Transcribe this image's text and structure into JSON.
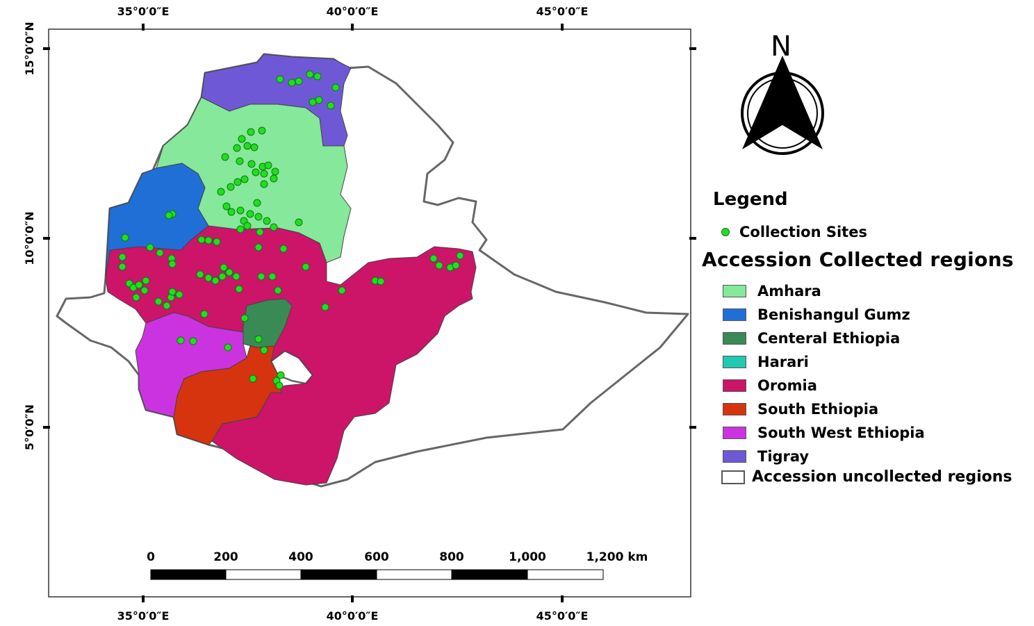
{
  "map": {
    "top_lon_labels": [
      "35°0′0″E",
      "40°0′0″E",
      "45°0′0″E"
    ],
    "bottom_lon_labels": [
      "35°0′0″E",
      "40°0′0″E",
      "45°0′0″E"
    ],
    "lat_labels": [
      "15°0′0″N",
      "10°0′0″N",
      "5°0′0″N"
    ],
    "north_arrow_label": "N",
    "scale_bar": {
      "labels": [
        "0",
        "200",
        "400",
        "600",
        "800",
        "1,000",
        "1,200 km"
      ]
    }
  },
  "legend": {
    "title": "Legend",
    "sites_label": "Collection Sites",
    "subtitle": "Accession Collected regions",
    "regions": [
      {
        "name": "Amhara",
        "color": "#86e89a"
      },
      {
        "name": "Benishangul Gumz",
        "color": "#1f6fd6"
      },
      {
        "name": "Centeral Ethiopia",
        "color": "#3a8a55"
      },
      {
        "name": "Harari",
        "color": "#20c9b0"
      },
      {
        "name": "Oromia",
        "color": "#cc1469"
      },
      {
        "name": "South Ethiopia",
        "color": "#d6330f"
      },
      {
        "name": "South West Ethiopia",
        "color": "#cc33e0"
      },
      {
        "name": "Tigray",
        "color": "#6f58d6"
      }
    ],
    "uncollected_label": "Accession uncollected regions"
  },
  "colors": {
    "site_fill": "#22dd22",
    "site_stroke": "#0b7a0b",
    "boundary": "#555555"
  }
}
